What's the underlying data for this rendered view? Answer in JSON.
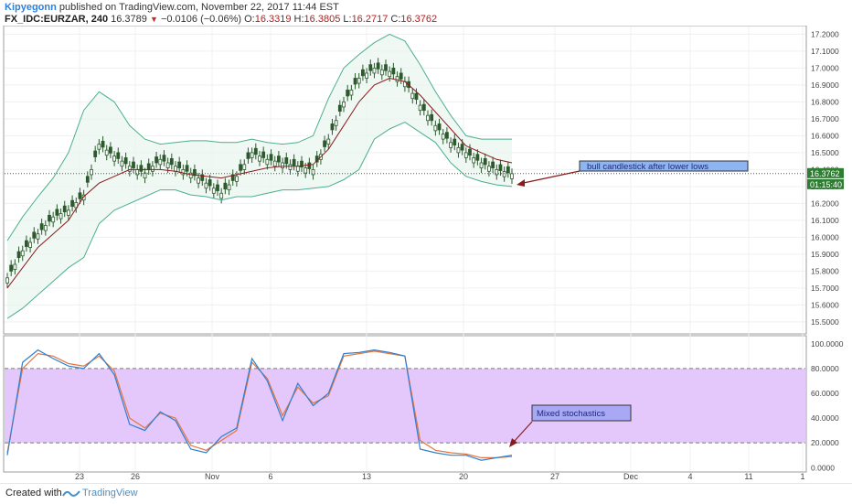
{
  "header": {
    "author": "Kipyegonn",
    "published_text": " published on TradingView.com, November 22, 2017 11:44 EST",
    "symbol": "FX_IDC:EURZAR, 240",
    "last_price": "16.3789",
    "change_arrow": "▼",
    "change": "−0.0106 (−0.06%)",
    "open_label": "O:",
    "open": "16.3319",
    "high_label": "H:",
    "high": "16.3805",
    "low_label": "L:",
    "low": "16.2717",
    "close_label": "C:",
    "close": "16.3762"
  },
  "price_axis": {
    "labels": [
      "17.2000",
      "17.1000",
      "17.0000",
      "16.9000",
      "16.8000",
      "16.7000",
      "16.6000",
      "16.5000",
      "16.4000",
      "16.3000",
      "16.2000",
      "16.1000",
      "16.0000",
      "15.9000",
      "15.8000",
      "15.7000",
      "15.6000",
      "15.5000"
    ],
    "current_tag": "16.3762",
    "countdown_tag": "01:15:40"
  },
  "stoch_axis": {
    "labels": [
      "100.0000",
      "80.0000",
      "60.0000",
      "40.0000",
      "20.0000",
      "0.0000"
    ]
  },
  "time_axis": {
    "labels": [
      "23",
      "26",
      "Nov",
      "6",
      "13",
      "20",
      "27",
      "Dec",
      "4",
      "11",
      "1"
    ]
  },
  "annotations": {
    "price_note": "bull candlestick after lower lows",
    "stoch_note": "Mixed stochastics"
  },
  "footer": {
    "created_with": "Created with",
    "brand": "TradingView"
  },
  "colors": {
    "band": "#4caf8f",
    "band_fill": "#e8f5ee",
    "basis": "#8b1a1a",
    "candle": "#2d5a2d",
    "stoch_k": "#2f80d0",
    "stoch_d": "#e6743c",
    "stoch_zone": "#e5c8fb",
    "arrow": "#8b1a1a",
    "note_bg": "#8fb4f2",
    "note_bg2": "#a8a8f4"
  },
  "chart_data": [
    {
      "type": "line",
      "symbol": "FX_IDC:EURZAR",
      "interval": "240",
      "x": [
        "Oct 20",
        "Oct 21",
        "Oct 22",
        "Oct 23",
        "Oct 24",
        "Oct 25",
        "Oct 26",
        "Oct 27",
        "Oct 28",
        "Oct 29",
        "Oct 30",
        "Oct 31",
        "Nov 1",
        "Nov 2",
        "Nov 3",
        "Nov 4",
        "Nov 5",
        "Nov 6",
        "Nov 7",
        "Nov 8",
        "Nov 9",
        "Nov 10",
        "Nov 11",
        "Nov 12",
        "Nov 13",
        "Nov 14",
        "Nov 15",
        "Nov 16",
        "Nov 17",
        "Nov 18",
        "Nov 19",
        "Nov 20",
        "Nov 21",
        "Nov 22"
      ],
      "series": [
        {
          "name": "Close",
          "values": [
            15.76,
            15.92,
            16.02,
            16.12,
            16.16,
            16.25,
            16.55,
            16.48,
            16.42,
            16.38,
            16.46,
            16.42,
            16.38,
            16.32,
            16.26,
            16.36,
            16.5,
            16.46,
            16.44,
            16.42,
            16.4,
            16.58,
            16.8,
            16.94,
            17.0,
            16.98,
            16.92,
            16.78,
            16.66,
            16.56,
            16.5,
            16.44,
            16.4,
            16.376
          ]
        },
        {
          "name": "Upper Band",
          "values": [
            15.98,
            16.12,
            16.24,
            16.35,
            16.5,
            16.75,
            16.86,
            16.8,
            16.66,
            16.58,
            16.55,
            16.56,
            16.57,
            16.57,
            16.56,
            16.56,
            16.58,
            16.56,
            16.55,
            16.56,
            16.6,
            16.82,
            17.0,
            17.08,
            17.15,
            17.2,
            17.16,
            17.02,
            16.86,
            16.72,
            16.6,
            16.58,
            16.58,
            16.58
          ]
        },
        {
          "name": "Basis",
          "values": [
            15.7,
            15.82,
            15.94,
            16.02,
            16.1,
            16.24,
            16.32,
            16.36,
            16.4,
            16.4,
            16.4,
            16.39,
            16.37,
            16.36,
            16.35,
            16.37,
            16.39,
            16.41,
            16.42,
            16.42,
            16.43,
            16.52,
            16.66,
            16.8,
            16.9,
            16.94,
            16.92,
            16.84,
            16.74,
            16.64,
            16.54,
            16.5,
            16.46,
            16.44
          ]
        },
        {
          "name": "Lower Band",
          "values": [
            15.52,
            15.58,
            15.66,
            15.74,
            15.82,
            15.88,
            16.08,
            16.16,
            16.2,
            16.24,
            16.28,
            16.28,
            16.25,
            16.24,
            16.22,
            16.24,
            16.24,
            16.26,
            16.28,
            16.28,
            16.29,
            16.3,
            16.34,
            16.4,
            16.58,
            16.64,
            16.68,
            16.62,
            16.56,
            16.44,
            16.36,
            16.33,
            16.31,
            16.3
          ]
        }
      ],
      "ylim": [
        15.44,
        17.24
      ]
    },
    {
      "type": "line",
      "x": [
        "Oct 20",
        "Oct 21",
        "Oct 22",
        "Oct 23",
        "Oct 24",
        "Oct 25",
        "Oct 26",
        "Oct 27",
        "Oct 28",
        "Oct 29",
        "Oct 30",
        "Oct 31",
        "Nov 1",
        "Nov 2",
        "Nov 3",
        "Nov 4",
        "Nov 5",
        "Nov 6",
        "Nov 7",
        "Nov 8",
        "Nov 9",
        "Nov 10",
        "Nov 11",
        "Nov 12",
        "Nov 13",
        "Nov 14",
        "Nov 15",
        "Nov 16",
        "Nov 17",
        "Nov 18",
        "Nov 19",
        "Nov 20",
        "Nov 21",
        "Nov 22"
      ],
      "series": [
        {
          "values": [
            10,
            85,
            95,
            88,
            82,
            80,
            92,
            75,
            35,
            30,
            45,
            38,
            15,
            12,
            25,
            32,
            88,
            70,
            38,
            68,
            50,
            60,
            92,
            93,
            95,
            93,
            90,
            15,
            12,
            10,
            10,
            6,
            8,
            10
          ]
        },
        {
          "values": [
            12,
            80,
            92,
            90,
            84,
            82,
            90,
            78,
            40,
            32,
            44,
            40,
            18,
            14,
            22,
            30,
            85,
            72,
            42,
            65,
            52,
            58,
            90,
            92,
            94,
            92,
            90,
            22,
            14,
            12,
            11,
            8,
            8,
            9
          ]
        }
      ],
      "ylim": [
        -2,
        105
      ],
      "bands": [
        20,
        80
      ]
    }
  ]
}
